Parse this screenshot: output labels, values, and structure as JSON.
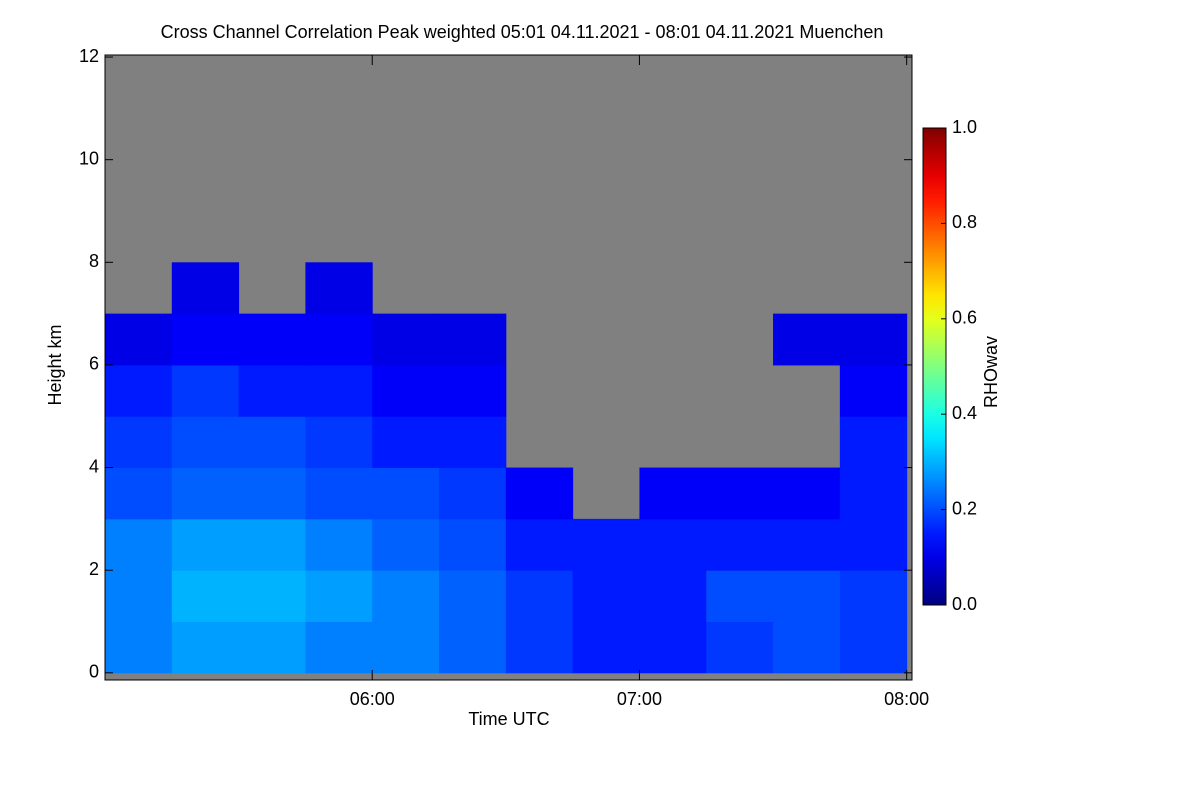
{
  "chart_data": {
    "type": "heatmap",
    "title": "Cross Channel Correlation Peak weighted   05:01 04.11.2021 - 08:01 04.11.2021 Muenchen",
    "x_label": "Time UTC",
    "y_label": "Height km",
    "colorbar_label": "RHOwav",
    "colormap": "jet",
    "nodata_color": "#808080",
    "xlim": [
      5.0,
      8.02
    ],
    "xticks": [
      {
        "value": 6,
        "label": "06:00"
      },
      {
        "value": 7,
        "label": "07:00"
      },
      {
        "value": 8,
        "label": "08:00"
      }
    ],
    "ylim": [
      -0.14,
      12.04
    ],
    "yticks": [
      0,
      2,
      4,
      6,
      8,
      10,
      12
    ],
    "clim": [
      0,
      1
    ],
    "cticks": [
      {
        "value": 0,
        "label": "0.0"
      },
      {
        "value": 0.2,
        "label": "0.2"
      },
      {
        "value": 0.4,
        "label": "0.4"
      },
      {
        "value": 0.6,
        "label": "0.6"
      },
      {
        "value": 0.8,
        "label": "0.8"
      },
      {
        "value": 1,
        "label": "1.0"
      }
    ],
    "x_edges": [
      5.0,
      5.25,
      5.5,
      5.75,
      6.0,
      6.25,
      6.5,
      6.75,
      7.0,
      7.25,
      7.5,
      7.75,
      8.0
    ],
    "y_edges": [
      0,
      1,
      2,
      3,
      4,
      5,
      6,
      7,
      8
    ],
    "z": [
      [
        0.25,
        0.28,
        0.28,
        0.25,
        0.25,
        0.22,
        0.18,
        0.15,
        0.15,
        0.18,
        0.2,
        0.18
      ],
      [
        0.25,
        0.3,
        0.3,
        0.28,
        0.25,
        0.22,
        0.18,
        0.15,
        0.15,
        0.2,
        0.2,
        0.18
      ],
      [
        0.25,
        0.28,
        0.28,
        0.25,
        0.22,
        0.2,
        0.15,
        0.15,
        0.15,
        0.15,
        0.15,
        0.15
      ],
      [
        0.2,
        0.22,
        0.22,
        0.2,
        0.2,
        0.18,
        0.12,
        null,
        0.12,
        0.12,
        0.12,
        0.15
      ],
      [
        0.18,
        0.2,
        0.2,
        0.18,
        0.15,
        0.15,
        null,
        null,
        null,
        null,
        null,
        0.15
      ],
      [
        0.15,
        0.18,
        0.15,
        0.15,
        0.12,
        0.12,
        null,
        null,
        null,
        null,
        null,
        0.12
      ],
      [
        0.1,
        0.12,
        0.12,
        0.12,
        0.1,
        0.1,
        null,
        null,
        null,
        null,
        0.1,
        0.1
      ],
      [
        null,
        0.1,
        null,
        0.1,
        null,
        null,
        null,
        null,
        null,
        null,
        null,
        null
      ]
    ]
  }
}
